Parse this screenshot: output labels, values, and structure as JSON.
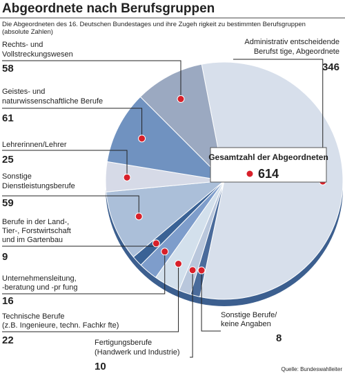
{
  "chart_data": {
    "type": "pie",
    "title": "Abgeordnete nach Berufsgruppen",
    "subtitle": [
      "Die Abgeordneten des 16. Deutschen Bundestages und ihre Zugeh rigkeit zu bestimmten Berufsgruppen",
      "(absolute Zahlen)"
    ],
    "categories": [
      [
        "Administrativ entscheidende",
        "Berufst tige,  Abgeordnete"
      ],
      [
        "Sonstige Berufe/",
        "keine Angaben"
      ],
      [
        "Fertigungsberufe",
        "(Handwerk und Industrie)"
      ],
      [
        "Technische Berufe",
        "(z.B. Ingenieure, techn. Fachkr fte)"
      ],
      [
        "Unternehmensleitung,",
        "-beratung und -pr fung"
      ],
      [
        "Berufe in der Land-,",
        "Tier-, Forstwirtschaft",
        "und im Gartenbau"
      ],
      [
        "Sonstige",
        "Dienstleistungsberufe"
      ],
      [
        "Lehrerinnen/Lehrer"
      ],
      [
        "Geistes- und",
        "naturwissenschaftliche Berufe"
      ],
      [
        "Rechts- und",
        "Vollstreckungswesen"
      ]
    ],
    "values": [
      346,
      8,
      10,
      22,
      16,
      9,
      59,
      25,
      61,
      58
    ],
    "colors": [
      "#d7dfeb",
      "#4a6b9b",
      "#b9c7dc",
      "#d3e0ec",
      "#7e9dcb",
      "#3a6295",
      "#abbfd9",
      "#d6dae7",
      "#7092c0",
      "#9ba9c1"
    ],
    "total_label": "Gesamtzahl der Abgeordneten",
    "total": 614,
    "source": "Quelle: Bundeswahlleiter"
  }
}
